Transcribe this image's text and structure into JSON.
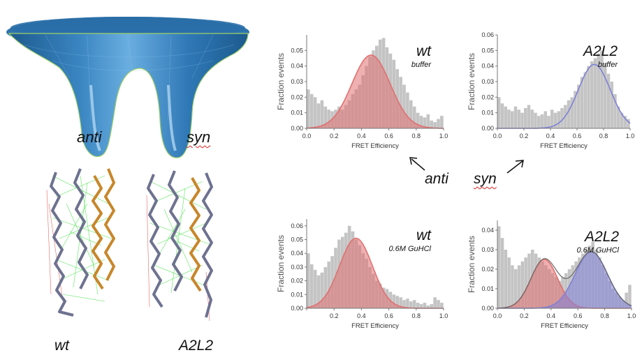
{
  "labels": {
    "funnel_anti": "anti",
    "funnel_syn": "syn",
    "struct_wt": "wt",
    "struct_a2l2": "A2L2",
    "center_anti": "anti",
    "center_syn": "syn"
  },
  "colors": {
    "funnel": "#2a6fa8",
    "hist_gray": "#c4c4c4",
    "fit_red": "#e07070",
    "fit_blue": "#7f7fd8",
    "ribbon_gray": "#6e7290",
    "ribbon_orange": "#c8862a",
    "restraint_green": "#33dd33",
    "restraint_red": "#e04040"
  },
  "chart_data": [
    {
      "type": "bar",
      "title": "wt",
      "subtitle": "buffer",
      "xlabel": "FRET Efficiency",
      "ylabel": "Fraction events",
      "xlim": [
        0,
        1.0
      ],
      "ylim": [
        0,
        0.06
      ],
      "xticks": [
        "0.0",
        "0.2",
        "0.4",
        "0.6",
        "0.8",
        "1.0"
      ],
      "yticks": [
        "0.00",
        "0.01",
        "0.02",
        "0.03",
        "0.04",
        "0.05"
      ],
      "bin_start": 0.0,
      "bin_width": 0.025,
      "values": [
        0.025,
        0.022,
        0.02,
        0.016,
        0.018,
        0.014,
        0.012,
        0.011,
        0.012,
        0.014,
        0.012,
        0.015,
        0.018,
        0.022,
        0.025,
        0.028,
        0.034,
        0.04,
        0.046,
        0.05,
        0.053,
        0.057,
        0.058,
        0.052,
        0.048,
        0.044,
        0.038,
        0.033,
        0.028,
        0.023,
        0.018,
        0.014,
        0.01,
        0.008,
        0.007,
        0.009,
        0.005,
        0.004,
        0.006,
        0.008
      ],
      "fits": [
        {
          "color_key": "fit_red",
          "mu": 0.47,
          "sigma": 0.14,
          "amp": 0.047,
          "fill": true
        }
      ]
    },
    {
      "type": "bar",
      "title": "A2L2",
      "subtitle": "buffer",
      "xlabel": "FRET Efficiency",
      "ylabel": "Fraction events",
      "xlim": [
        0,
        1.0
      ],
      "ylim": [
        0,
        0.06
      ],
      "xticks": [
        "0.0",
        "0.2",
        "0.4",
        "0.6",
        "0.8",
        "1.0"
      ],
      "yticks": [
        "0.00",
        "0.01",
        "0.02",
        "0.03",
        "0.04",
        "0.05",
        "0.06"
      ],
      "bin_start": 0.0,
      "bin_width": 0.025,
      "values": [
        0.02,
        0.016,
        0.014,
        0.012,
        0.011,
        0.014,
        0.012,
        0.01,
        0.013,
        0.015,
        0.012,
        0.01,
        0.008,
        0.009,
        0.011,
        0.008,
        0.012,
        0.01,
        0.011,
        0.013,
        0.015,
        0.018,
        0.02,
        0.024,
        0.028,
        0.033,
        0.036,
        0.04,
        0.043,
        0.045,
        0.048,
        0.05,
        0.042,
        0.035,
        0.03,
        0.022,
        0.014,
        0.01,
        0.008,
        0.006
      ],
      "fits": [
        {
          "color_key": "fit_blue",
          "mu": 0.73,
          "sigma": 0.12,
          "amp": 0.041,
          "fill": false
        }
      ]
    },
    {
      "type": "bar",
      "title": "wt",
      "subtitle": "0.6M GuHCl",
      "xlabel": "FRET Efficiency",
      "ylabel": "Fraction events",
      "xlim": [
        0,
        1.0
      ],
      "ylim": [
        0,
        0.065
      ],
      "xticks": [
        "",
        "0.2",
        "0.4",
        "0.6",
        "0.8",
        "1.0"
      ],
      "yticks": [
        "0.00",
        "0.01",
        "0.02",
        "0.03",
        "0.04",
        "0.05",
        "0.06"
      ],
      "bin_start": 0.0,
      "bin_width": 0.025,
      "values": [
        0.04,
        0.032,
        0.028,
        0.024,
        0.026,
        0.03,
        0.034,
        0.038,
        0.044,
        0.05,
        0.052,
        0.055,
        0.06,
        0.056,
        0.05,
        0.046,
        0.04,
        0.036,
        0.03,
        0.025,
        0.02,
        0.018,
        0.015,
        0.014,
        0.012,
        0.01,
        0.009,
        0.008,
        0.006,
        0.007,
        0.005,
        0.006,
        0.004,
        0.003,
        0.004,
        0.002,
        0.003,
        0.008,
        0.006,
        0.004
      ],
      "fits": [
        {
          "color_key": "fit_red",
          "mu": 0.36,
          "sigma": 0.12,
          "amp": 0.051,
          "fill": true
        }
      ]
    },
    {
      "type": "bar",
      "title": "A2L2",
      "subtitle": "0.6M GuHCl",
      "xlabel": "FRET Efficiency",
      "ylabel": "Fraction events",
      "xlim": [
        0,
        1.0
      ],
      "ylim": [
        0,
        0.045
      ],
      "xticks": [
        "0.0",
        "0.2",
        "0.4",
        "0.6",
        "0.8",
        "1.0"
      ],
      "yticks": [
        "0.00",
        "0.01",
        "0.02",
        "0.03",
        "0.04"
      ],
      "bin_start": 0.0,
      "bin_width": 0.025,
      "values": [
        0.042,
        0.036,
        0.03,
        0.026,
        0.022,
        0.02,
        0.022,
        0.024,
        0.026,
        0.028,
        0.03,
        0.028,
        0.026,
        0.024,
        0.022,
        0.02,
        0.018,
        0.016,
        0.014,
        0.016,
        0.018,
        0.02,
        0.022,
        0.024,
        0.026,
        0.028,
        0.03,
        0.032,
        0.034,
        0.03,
        0.026,
        0.022,
        0.018,
        0.014,
        0.01,
        0.008,
        0.006,
        0.004,
        0.008,
        0.012
      ],
      "fits": [
        {
          "color_key": "fit_red",
          "mu": 0.35,
          "sigma": 0.1,
          "amp": 0.025,
          "fill": true
        },
        {
          "color_key": "fit_blue",
          "mu": 0.7,
          "sigma": 0.12,
          "amp": 0.029,
          "fill": true
        }
      ],
      "sum_fit": true
    }
  ]
}
